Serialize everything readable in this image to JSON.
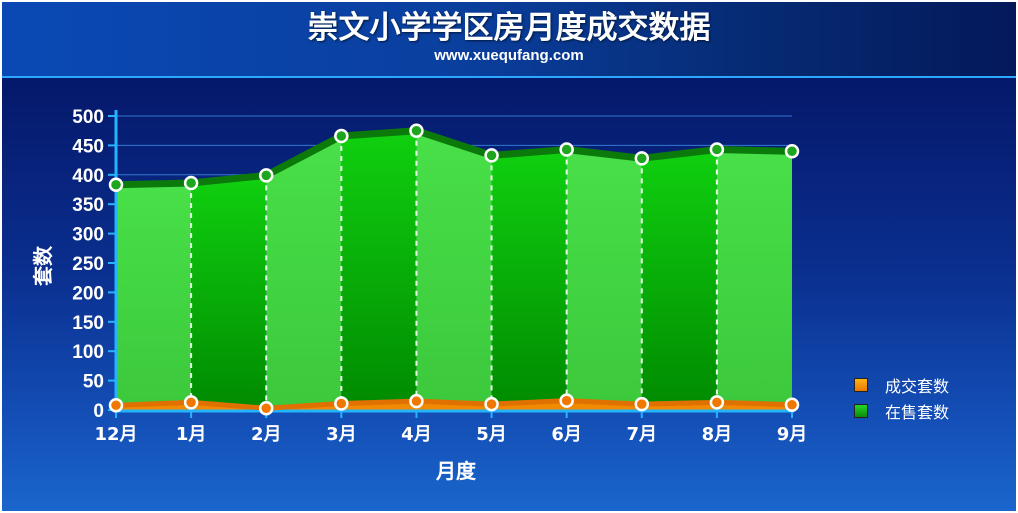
{
  "header": {
    "title": "崇文小学学区房月度成交数据",
    "subtitle": "www.xuequfang.com"
  },
  "colors": {
    "series_sold": "#f08a00",
    "series_for_sale": "#10a810",
    "header_bg": "#0a3f9e",
    "panel_bg": "#0a2f8f"
  },
  "chart_data": {
    "type": "area",
    "xlabel": "月度",
    "ylabel": "套数",
    "ylim": [
      0,
      500
    ],
    "yticks": [
      0,
      50,
      100,
      150,
      200,
      250,
      300,
      350,
      400,
      450,
      500
    ],
    "categories": [
      "12月",
      "1月",
      "2月",
      "3月",
      "4月",
      "5月",
      "6月",
      "7月",
      "8月",
      "9月"
    ],
    "series": [
      {
        "name": "成交套数",
        "values": [
          8,
          13,
          3,
          11,
          15,
          10,
          16,
          10,
          13,
          9
        ]
      },
      {
        "name": "在售套数",
        "values": [
          383,
          386,
          399,
          466,
          475,
          433,
          443,
          428,
          443,
          440
        ]
      }
    ],
    "grid": true,
    "legend_position": "right"
  }
}
